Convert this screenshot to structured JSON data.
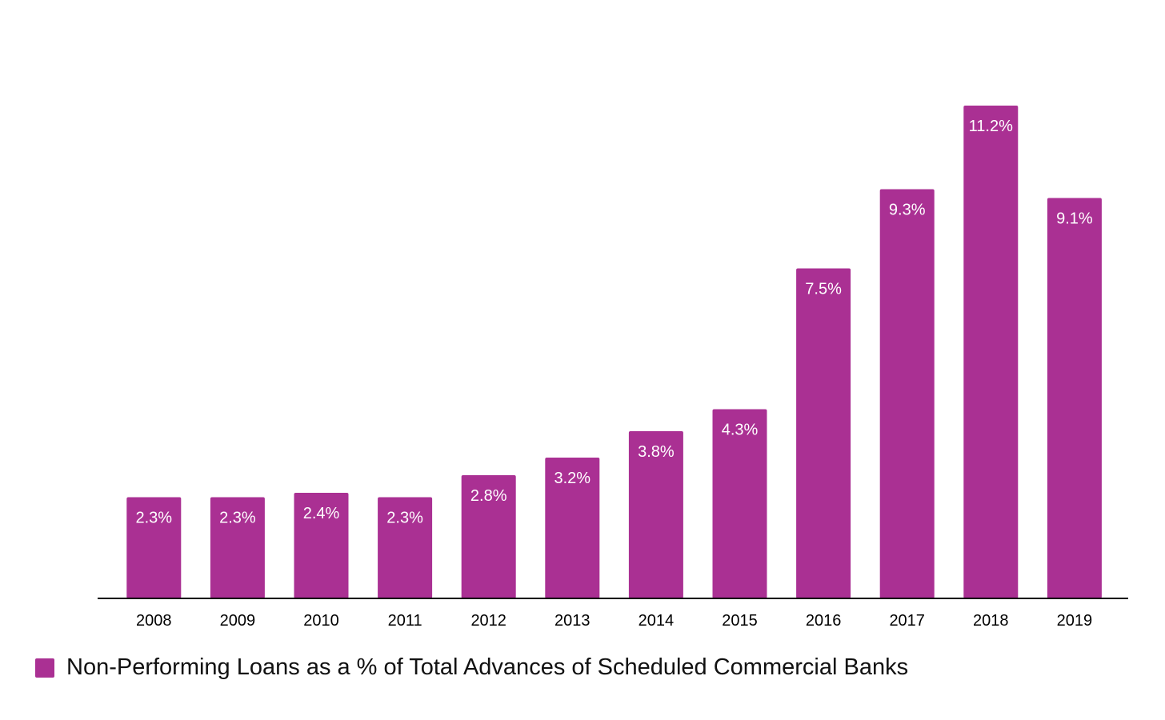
{
  "chart_data": {
    "type": "bar",
    "categories": [
      "2008",
      "2009",
      "2010",
      "2011",
      "2012",
      "2013",
      "2014",
      "2015",
      "2016",
      "2017",
      "2018",
      "2019"
    ],
    "series": [
      {
        "name": "Non-Performing Loans as a % of Total Advances of Scheduled Commercial Banks",
        "values": [
          2.3,
          2.3,
          2.4,
          2.3,
          2.8,
          3.2,
          3.8,
          4.3,
          7.5,
          9.3,
          11.2,
          9.1
        ],
        "labels": [
          "2.3%",
          "2.3%",
          "2.4%",
          "2.3%",
          "2.8%",
          "3.2%",
          "3.8%",
          "4.3%",
          "7.5%",
          "9.3%",
          "11.2%",
          "9.1%"
        ],
        "color": "#aa3093"
      }
    ],
    "ylim": [
      0,
      11.2
    ],
    "grid": false,
    "legend": "bottom-left",
    "label_color": "#ffffff",
    "axis_color": "#000000"
  }
}
